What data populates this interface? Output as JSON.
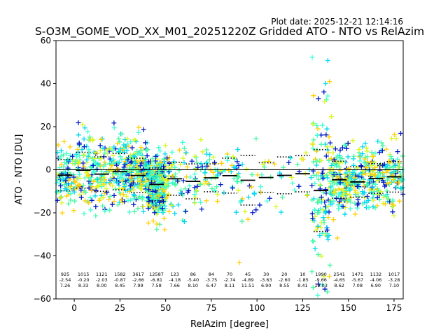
{
  "header": {
    "plot_date": "Plot date: 2025-12-21 12:14:16",
    "title": "S-O3M_GOME_VOD_XX_M01_20251220Z Gridded ATO - NTO vs RelAzim"
  },
  "chart_data": {
    "type": "scatter",
    "xlabel": "RelAzim [degree]",
    "ylabel": "ATO - NTO [DU]",
    "xlim": [
      -10,
      180
    ],
    "ylim": [
      -60,
      60
    ],
    "xticks": [
      0,
      25,
      50,
      75,
      100,
      125,
      150,
      175
    ],
    "yticks": [
      -60,
      -40,
      -20,
      0,
      20,
      40,
      60
    ],
    "grid": false,
    "zero_line": true,
    "colors": [
      "#00d8f0",
      "#48f8a0",
      "#ffd000",
      "#d8f820",
      "#0018c8",
      "#40ffd0"
    ],
    "bins": [
      {
        "center": -5,
        "n": "925",
        "mean": "-2.54",
        "std": "7.26"
      },
      {
        "center": 5,
        "n": "1015",
        "mean": "-0.20",
        "std": "8.33"
      },
      {
        "center": 15,
        "n": "1121",
        "mean": "-2.03",
        "std": "8.00"
      },
      {
        "center": 25,
        "n": "1582",
        "mean": "-0.87",
        "std": "8.45"
      },
      {
        "center": 35,
        "n": "3617",
        "mean": "-2.66",
        "std": "7.99"
      },
      {
        "center": 45,
        "n": "12587",
        "mean": "-6.81",
        "std": "7.58"
      },
      {
        "center": 55,
        "n": "123",
        "mean": "-4.18",
        "std": "7.66"
      },
      {
        "center": 65,
        "n": "86",
        "mean": "-5.40",
        "std": "8.10"
      },
      {
        "center": 75,
        "n": "84",
        "mean": "-3.75",
        "std": "6.47"
      },
      {
        "center": 85,
        "n": "70",
        "mean": "-2.74",
        "std": "8.11"
      },
      {
        "center": 95,
        "n": "45",
        "mean": "-4.89",
        "std": "11.51"
      },
      {
        "center": 105,
        "n": "30",
        "mean": "-3.63",
        "std": "6.90"
      },
      {
        "center": 115,
        "n": "20",
        "mean": "-2.60",
        "std": "8.55"
      },
      {
        "center": 125,
        "n": "10",
        "mean": "-1.85",
        "std": "8.41"
      },
      {
        "center": 135,
        "n": "1990",
        "mean": "-9.66",
        "std": "19.03"
      },
      {
        "center": 145,
        "n": "2541",
        "mean": "-4.65",
        "std": "8.62"
      },
      {
        "center": 155,
        "n": "1471",
        "mean": "-5.67",
        "std": "7.08"
      },
      {
        "center": 165,
        "n": "1132",
        "mean": "-4.06",
        "std": "6.90"
      },
      {
        "center": 175,
        "n": "1017",
        "mean": "-3.28",
        "std": "7.10"
      }
    ]
  }
}
